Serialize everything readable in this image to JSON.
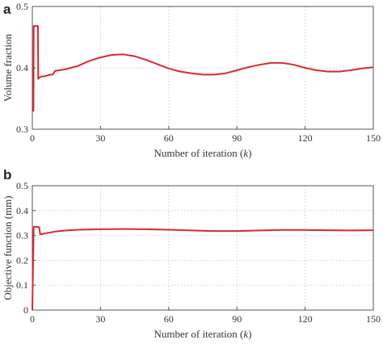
{
  "chart_data": [
    {
      "type": "line",
      "panel": "a",
      "xlabel_main": "Number of iteration (",
      "xlabel_var": "k",
      "xlabel_end": ")",
      "ylabel": "Volume fraction",
      "xlim": [
        0,
        150
      ],
      "ylim": [
        0.3,
        0.5
      ],
      "xticks": [
        0,
        30,
        60,
        90,
        120,
        150
      ],
      "yticks": [
        0.3,
        0.4,
        0.5
      ],
      "ytick_labels": [
        "0.3",
        "0.4",
        "0.5"
      ],
      "grid": true,
      "series_color": "#d62a2f",
      "x": [
        0,
        0.5,
        0.6,
        1,
        2,
        2.5,
        2.6,
        3,
        4,
        5,
        6,
        7,
        8,
        9,
        10,
        12,
        15,
        20,
        25,
        30,
        35,
        40,
        45,
        50,
        55,
        60,
        65,
        70,
        75,
        80,
        85,
        90,
        95,
        100,
        105,
        110,
        115,
        120,
        125,
        130,
        135,
        140,
        145,
        150
      ],
      "y": [
        0.33,
        0.33,
        0.468,
        0.468,
        0.468,
        0.468,
        0.382,
        0.384,
        0.386,
        0.386,
        0.387,
        0.388,
        0.389,
        0.389,
        0.395,
        0.396,
        0.398,
        0.403,
        0.411,
        0.417,
        0.421,
        0.422,
        0.419,
        0.413,
        0.406,
        0.399,
        0.394,
        0.391,
        0.389,
        0.389,
        0.391,
        0.396,
        0.401,
        0.405,
        0.408,
        0.408,
        0.405,
        0.4,
        0.396,
        0.394,
        0.394,
        0.396,
        0.399,
        0.401
      ]
    },
    {
      "type": "line",
      "panel": "b",
      "xlabel_main": "Number of iteration (",
      "xlabel_var": "k",
      "xlabel_end": ")",
      "ylabel": "Objective function (mm)",
      "xlim": [
        0,
        150
      ],
      "ylim": [
        0,
        0.5
      ],
      "xticks": [
        0,
        30,
        60,
        90,
        120,
        150
      ],
      "yticks": [
        0,
        0.1,
        0.2,
        0.3,
        0.4,
        0.5
      ],
      "ytick_labels": [
        "0",
        "0.1",
        "0.2",
        "0.3",
        "0.4",
        "0.5"
      ],
      "grid": true,
      "series_color": "#d62a2f",
      "x": [
        0,
        0.6,
        1,
        2,
        3,
        3.5,
        4,
        5,
        6,
        8,
        10,
        15,
        20,
        30,
        40,
        50,
        60,
        70,
        80,
        90,
        100,
        110,
        120,
        130,
        140,
        150
      ],
      "y": [
        0,
        0.335,
        0.335,
        0.335,
        0.333,
        0.305,
        0.305,
        0.307,
        0.309,
        0.312,
        0.316,
        0.32,
        0.323,
        0.325,
        0.326,
        0.325,
        0.323,
        0.32,
        0.318,
        0.318,
        0.32,
        0.322,
        0.322,
        0.321,
        0.32,
        0.321
      ]
    }
  ]
}
